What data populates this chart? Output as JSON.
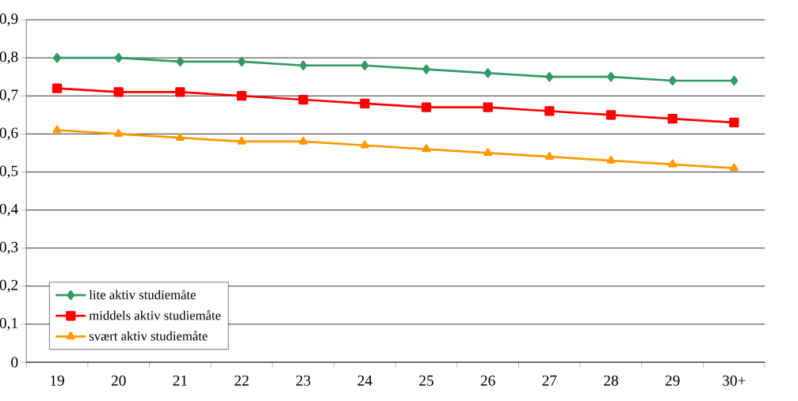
{
  "chart_data": {
    "type": "line",
    "categories": [
      "19",
      "20",
      "21",
      "22",
      "23",
      "24",
      "25",
      "26",
      "27",
      "28",
      "29",
      "30+"
    ],
    "series": [
      {
        "name": "lite aktiv studiemåte",
        "color": "#339966",
        "marker": "diamond",
        "values": [
          0.8,
          0.8,
          0.79,
          0.79,
          0.78,
          0.78,
          0.77,
          0.76,
          0.75,
          0.75,
          0.74,
          0.74
        ]
      },
      {
        "name": "middels aktiv studiemåte",
        "color": "#ff0000",
        "marker": "square",
        "values": [
          0.72,
          0.71,
          0.71,
          0.7,
          0.69,
          0.68,
          0.67,
          0.67,
          0.66,
          0.65,
          0.64,
          0.63
        ]
      },
      {
        "name": "svært aktiv studiemåte",
        "color": "#ff9900",
        "marker": "triangle",
        "values": [
          0.61,
          0.6,
          0.59,
          0.58,
          0.58,
          0.57,
          0.56,
          0.55,
          0.54,
          0.53,
          0.52,
          0.51
        ]
      }
    ],
    "ylim": [
      0,
      0.9
    ],
    "yticks": [
      0,
      {
        "value": 0.1,
        "label": "0,1"
      },
      {
        "value": 0.2,
        "label": "0,2"
      },
      {
        "value": 0.3,
        "label": "0,3"
      },
      {
        "value": 0.4,
        "label": "0,4"
      },
      {
        "value": 0.5,
        "label": "0,5"
      },
      {
        "value": 0.6,
        "label": "0,6"
      },
      {
        "value": 0.7,
        "label": "0,7"
      },
      {
        "value": 0.8,
        "label": "0,8"
      },
      {
        "value": 0.9,
        "label": "0,9"
      }
    ],
    "grid": "y",
    "legend": "bottom left",
    "line_style": "solid"
  }
}
